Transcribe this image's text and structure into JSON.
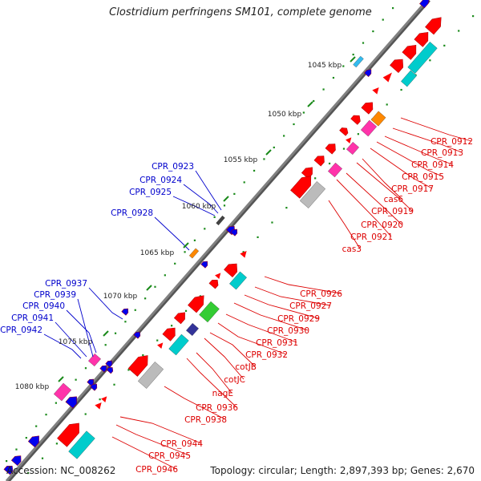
{
  "header": {
    "title": "Clostridium perfringens SM101, complete genome"
  },
  "footer": {
    "accession": "Accession: NC_008262",
    "summary": "Topology: circular; Length: 2,897,393 bp; Genes: 2,670"
  },
  "colors": {
    "backbone": "#808080",
    "ticks": "#1a8a1a",
    "plus_label": "#0000cc",
    "minus_label": "#dd0000",
    "cds": "#ff0000",
    "trna": "#00cccc",
    "rrna": "#bbbbbb",
    "pink": "#ff33aa",
    "orange": "#ff8800",
    "green": "#33cc33",
    "navy": "#333399",
    "blue": "#0000ee"
  },
  "ticks": [
    "1045 kbp",
    "1050 kbp",
    "1055 kbp",
    "1060 kbp",
    "1065 kbp",
    "1070 kbp",
    "1075 kbp",
    "1080 kbp"
  ],
  "plus_labels": [
    "CPR_0923",
    "CPR_0924",
    "CPR_0925",
    "CPR_0928",
    "CPR_0937",
    "CPR_0939",
    "CPR_0940",
    "CPR_0941",
    "CPR_0942"
  ],
  "minus_labels": [
    "CPR_0912",
    "CPR_0913",
    "CPR_0914",
    "CPR_0915",
    "CPR_0917",
    "cas6",
    "CPR_0919",
    "CPR_0920",
    "CPR_0921",
    "cas3",
    "CPR_0926",
    "CPR_0927",
    "CPR_0929",
    "CPR_0930",
    "CPR_0931",
    "CPR_0932",
    "cotJB",
    "cotJC",
    "nagE",
    "CPR_0936",
    "CPR_0938",
    "CPR_0944",
    "CPR_0945",
    "CPR_0946"
  ]
}
